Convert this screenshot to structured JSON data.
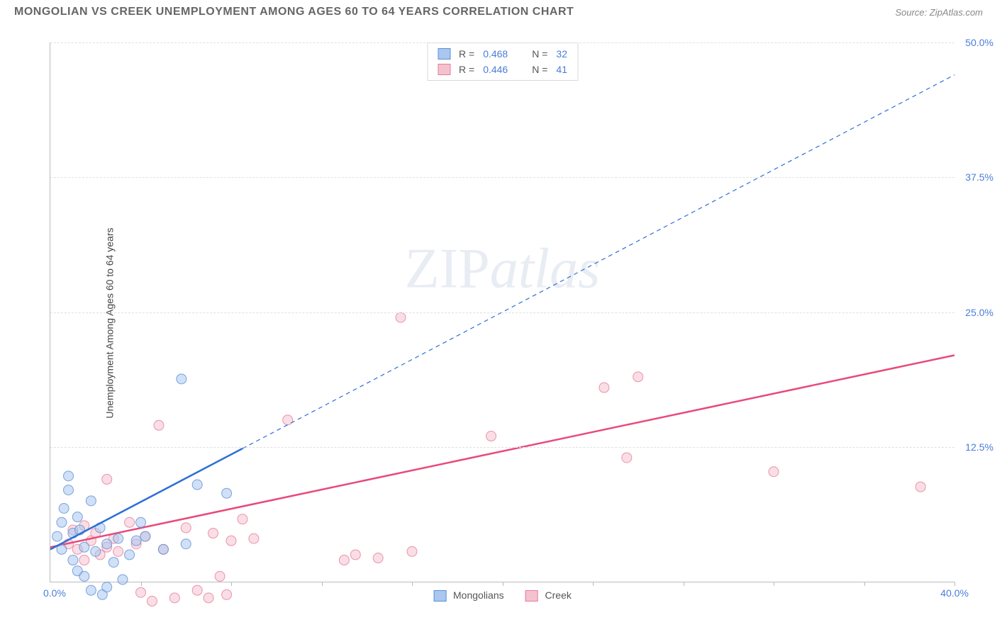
{
  "header": {
    "title": "MONGOLIAN VS CREEK UNEMPLOYMENT AMONG AGES 60 TO 64 YEARS CORRELATION CHART",
    "source": "Source: ZipAtlas.com"
  },
  "chart": {
    "type": "scatter-correlation",
    "ylabel": "Unemployment Among Ages 60 to 64 years",
    "xlim": [
      0,
      40
    ],
    "ylim": [
      0,
      50
    ],
    "x_origin_label": "0.0%",
    "x_max_label": "40.0%",
    "y_ticks": [
      {
        "value": 12.5,
        "label": "12.5%"
      },
      {
        "value": 25.0,
        "label": "25.0%"
      },
      {
        "value": 37.5,
        "label": "37.5%"
      },
      {
        "value": 50.0,
        "label": "50.0%"
      }
    ],
    "x_tick_positions": [
      4,
      8,
      12,
      16,
      20,
      24,
      28,
      32,
      36,
      40
    ],
    "background_color": "#ffffff",
    "grid_color": "#e0e0e0",
    "axis_color": "#bbbbbb",
    "marker_radius": 7,
    "marker_opacity": 0.55,
    "series": {
      "mongolians": {
        "label": "Mongolians",
        "color_fill": "#a9c7ef",
        "color_stroke": "#5c8fd6",
        "points": [
          [
            0.3,
            4.2
          ],
          [
            0.5,
            5.5
          ],
          [
            0.5,
            3.0
          ],
          [
            0.6,
            6.8
          ],
          [
            0.8,
            8.5
          ],
          [
            0.8,
            9.8
          ],
          [
            1.0,
            4.5
          ],
          [
            1.0,
            2.0
          ],
          [
            1.2,
            1.0
          ],
          [
            1.2,
            6.0
          ],
          [
            1.3,
            4.8
          ],
          [
            1.5,
            3.2
          ],
          [
            1.5,
            0.5
          ],
          [
            1.8,
            7.5
          ],
          [
            1.8,
            -0.8
          ],
          [
            2.0,
            2.8
          ],
          [
            2.2,
            5.0
          ],
          [
            2.3,
            -1.2
          ],
          [
            2.5,
            3.5
          ],
          [
            2.5,
            -0.5
          ],
          [
            2.8,
            1.8
          ],
          [
            3.0,
            4.0
          ],
          [
            3.2,
            0.2
          ],
          [
            3.5,
            2.5
          ],
          [
            3.8,
            3.8
          ],
          [
            4.0,
            5.5
          ],
          [
            4.2,
            4.2
          ],
          [
            5.0,
            3.0
          ],
          [
            5.8,
            18.8
          ],
          [
            6.0,
            3.5
          ],
          [
            6.5,
            9.0
          ],
          [
            7.8,
            8.2
          ]
        ],
        "trend": {
          "color": "#2e6fd6",
          "solid_until_x": 8.5,
          "x1": 0,
          "y1": 3.0,
          "x2": 40,
          "y2": 47.0,
          "width_solid": 2.5,
          "width_dash": 1.2,
          "dash": "6 5"
        }
      },
      "creek": {
        "label": "Creek",
        "color_fill": "#f4c2cf",
        "color_stroke": "#e87a9a",
        "points": [
          [
            0.8,
            3.5
          ],
          [
            1.0,
            4.8
          ],
          [
            1.2,
            3.0
          ],
          [
            1.5,
            2.0
          ],
          [
            1.5,
            5.2
          ],
          [
            1.8,
            3.8
          ],
          [
            2.0,
            4.5
          ],
          [
            2.2,
            2.5
          ],
          [
            2.5,
            9.5
          ],
          [
            2.5,
            3.2
          ],
          [
            2.8,
            4.0
          ],
          [
            3.0,
            2.8
          ],
          [
            3.5,
            5.5
          ],
          [
            3.8,
            3.5
          ],
          [
            4.0,
            -1.0
          ],
          [
            4.2,
            4.2
          ],
          [
            4.5,
            -1.8
          ],
          [
            4.8,
            14.5
          ],
          [
            5.0,
            3.0
          ],
          [
            5.5,
            -1.5
          ],
          [
            6.0,
            5.0
          ],
          [
            6.5,
            -0.8
          ],
          [
            7.0,
            -1.5
          ],
          [
            7.2,
            4.5
          ],
          [
            7.5,
            0.5
          ],
          [
            7.8,
            -1.2
          ],
          [
            8.0,
            3.8
          ],
          [
            8.5,
            5.8
          ],
          [
            9.0,
            4.0
          ],
          [
            10.5,
            15.0
          ],
          [
            13.0,
            2.0
          ],
          [
            13.5,
            2.5
          ],
          [
            14.5,
            2.2
          ],
          [
            15.5,
            24.5
          ],
          [
            16.0,
            2.8
          ],
          [
            19.5,
            13.5
          ],
          [
            24.5,
            18.0
          ],
          [
            25.5,
            11.5
          ],
          [
            26.0,
            19.0
          ],
          [
            32.0,
            10.2
          ],
          [
            38.5,
            8.8
          ]
        ],
        "trend": {
          "color": "#e84a7a",
          "solid_until_x": 40,
          "x1": 0,
          "y1": 3.2,
          "x2": 40,
          "y2": 21.0,
          "width_solid": 2.5,
          "width_dash": 1.2,
          "dash": "6 5"
        }
      }
    },
    "legend_stats": [
      {
        "series": "mongolians",
        "r_label": "R =",
        "r_value": "0.468",
        "n_label": "N =",
        "n_value": "32"
      },
      {
        "series": "creek",
        "r_label": "R =",
        "r_value": "0.446",
        "n_label": "N =",
        "n_value": "41"
      }
    ],
    "watermark": {
      "part1": "ZIP",
      "part2": "atlas"
    }
  }
}
